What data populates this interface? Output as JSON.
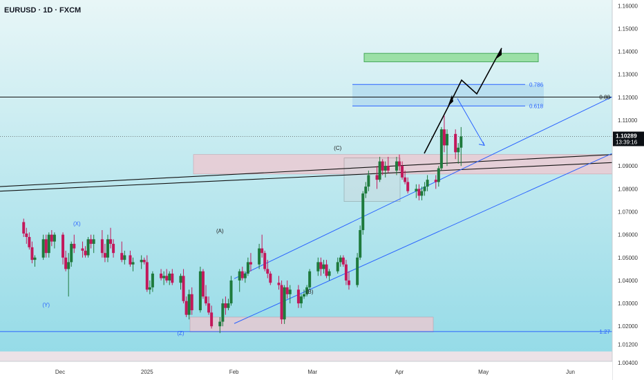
{
  "header": {
    "symbol_title": "EURUSD · 1D · FXCM"
  },
  "colors": {
    "bg_top": "#e8f6f7",
    "bg_bottom": "#8fd9e6",
    "bull": "#1e7a3c",
    "bear": "#c2185b",
    "wave_blue": "#2962ff",
    "price_badge": "#0b0f14"
  },
  "chart_data": {
    "type": "candlestick",
    "symbol": "EURUSD",
    "timeframe": "1D",
    "source": "FXCM",
    "ylim": [
      1.0,
      1.165
    ],
    "y_ticks": [
      "1.16000",
      "1.15000",
      "1.14000",
      "1.13000",
      "1.12000",
      "1.11000",
      "1.09000",
      "1.08000",
      "1.07000",
      "1.06000",
      "1.05000",
      "1.04000",
      "1.03000",
      "1.02000",
      "1.01200",
      "1.00400"
    ],
    "x_ticks": [
      "Dec",
      "2025",
      "Feb",
      "Mar",
      "Apr",
      "May",
      "Jun"
    ],
    "x_tick_dates": [
      "2024-12-01",
      "2025-01-01",
      "2025-02-01",
      "2025-03-01",
      "2025-04-01",
      "2025-05-01",
      "2025-06-01"
    ],
    "last_price": "1.10289",
    "countdown": "13:39:16",
    "fib_levels": [
      {
        "label": "0.88",
        "price": 1.1201
      },
      {
        "label": "0.786",
        "price": 1.1256
      },
      {
        "label": "0.618",
        "price": 1.1162
      },
      {
        "label": "1.27",
        "price": 1.0177
      }
    ],
    "wave_labels": [
      {
        "text": "(X)",
        "date": "2024-12-07",
        "price": 1.064
      },
      {
        "text": "(Y)",
        "date": "2024-11-26",
        "price": 1.0285
      },
      {
        "text": "(Z)",
        "date": "2025-01-13",
        "price": 1.0162
      },
      {
        "text": "(A)",
        "date": "2025-01-27",
        "price": 1.0608
      },
      {
        "text": "(B)",
        "date": "2025-02-28",
        "price": 1.0343
      },
      {
        "text": "(C)",
        "date": "2025-03-10",
        "price": 1.097
      }
    ],
    "candles": [
      [
        "2024-11-18",
        1.0655,
        1.067,
        1.059,
        1.0605
      ],
      [
        "2024-11-19",
        1.0605,
        1.063,
        1.056,
        1.059
      ],
      [
        "2024-11-20",
        1.059,
        1.061,
        1.0535,
        1.0545
      ],
      [
        "2024-11-21",
        1.0545,
        1.057,
        1.0475,
        1.049
      ],
      [
        "2024-11-22",
        1.049,
        1.051,
        1.046,
        1.05
      ],
      [
        "2024-11-25",
        1.05,
        1.06,
        1.049,
        1.058
      ],
      [
        "2024-11-26",
        1.058,
        1.06,
        1.05,
        1.052
      ],
      [
        "2024-11-27",
        1.052,
        1.061,
        1.05,
        1.06
      ],
      [
        "2024-11-28",
        1.06,
        1.062,
        1.055,
        1.057
      ],
      [
        "2024-11-29",
        1.057,
        1.061,
        1.054,
        1.06
      ],
      [
        "2024-12-02",
        1.06,
        1.061,
        1.047,
        1.05
      ],
      [
        "2024-12-03",
        1.05,
        1.053,
        1.044,
        1.045
      ],
      [
        "2024-12-04",
        1.045,
        1.052,
        1.033,
        1.048
      ],
      [
        "2024-12-05",
        1.048,
        1.057,
        1.046,
        1.056
      ],
      [
        "2024-12-06",
        1.056,
        1.06,
        1.052,
        1.054
      ],
      [
        "2024-12-09",
        1.054,
        1.057,
        1.05,
        1.053
      ],
      [
        "2024-12-10",
        1.053,
        1.055,
        1.05,
        1.051
      ],
      [
        "2024-12-11",
        1.051,
        1.059,
        1.05,
        1.058
      ],
      [
        "2024-12-12",
        1.058,
        1.06,
        1.054,
        1.056
      ],
      [
        "2024-12-13",
        1.056,
        1.06,
        1.052,
        1.058
      ],
      [
        "2024-12-16",
        1.058,
        1.062,
        1.05,
        1.052
      ],
      [
        "2024-12-17",
        1.052,
        1.056,
        1.048,
        1.05
      ],
      [
        "2024-12-18",
        1.05,
        1.06,
        1.048,
        1.058
      ],
      [
        "2024-12-19",
        1.058,
        1.063,
        1.054,
        1.056
      ],
      [
        "2024-12-20",
        1.056,
        1.058,
        1.05,
        1.052
      ],
      [
        "2024-12-23",
        1.052,
        1.057,
        1.048,
        1.049
      ],
      [
        "2024-12-24",
        1.049,
        1.053,
        1.047,
        1.051
      ],
      [
        "2024-12-26",
        1.051,
        1.053,
        1.046,
        1.047
      ],
      [
        "2024-12-27",
        1.047,
        1.05,
        1.044,
        1.048
      ],
      [
        "2024-12-30",
        1.048,
        1.051,
        1.045,
        1.049
      ],
      [
        "2024-12-31",
        1.049,
        1.05,
        1.047,
        1.048
      ],
      [
        "2025-01-01",
        1.048,
        1.051,
        1.035,
        1.036
      ],
      [
        "2025-01-02",
        1.036,
        1.04,
        1.034,
        1.037
      ],
      [
        "2025-01-03",
        1.037,
        1.044,
        1.035,
        1.043
      ],
      [
        "2025-01-06",
        1.043,
        1.045,
        1.04,
        1.041
      ],
      [
        "2025-01-07",
        1.041,
        1.044,
        1.038,
        1.042
      ],
      [
        "2025-01-08",
        1.042,
        1.045,
        1.039,
        1.04
      ],
      [
        "2025-01-09",
        1.04,
        1.044,
        1.038,
        1.043
      ],
      [
        "2025-01-10",
        1.043,
        1.045,
        1.038,
        1.039
      ],
      [
        "2025-01-13",
        1.039,
        1.043,
        1.036,
        1.042
      ],
      [
        "2025-01-14",
        1.042,
        1.045,
        1.03,
        1.031
      ],
      [
        "2025-01-15",
        1.031,
        1.033,
        1.024,
        1.025
      ],
      [
        "2025-01-16",
        1.025,
        1.036,
        1.023,
        1.034
      ],
      [
        "2025-01-17",
        1.034,
        1.037,
        1.025,
        1.027
      ],
      [
        "2025-01-20",
        1.027,
        1.046,
        1.026,
        1.044
      ],
      [
        "2025-01-21",
        1.044,
        1.045,
        1.032,
        1.033
      ],
      [
        "2025-01-22",
        1.033,
        1.038,
        1.029,
        1.03
      ],
      [
        "2025-01-23",
        1.03,
        1.033,
        1.025,
        1.026
      ],
      [
        "2025-01-24",
        1.026,
        1.029,
        1.019,
        1.02
      ],
      [
        "2025-01-27",
        1.02,
        1.024,
        1.017,
        1.022
      ],
      [
        "2025-01-28",
        1.022,
        1.032,
        1.02,
        1.03
      ],
      [
        "2025-01-29",
        1.03,
        1.033,
        1.025,
        1.028
      ],
      [
        "2025-01-30",
        1.028,
        1.032,
        1.027,
        1.03
      ],
      [
        "2025-01-31",
        1.03,
        1.042,
        1.029,
        1.04
      ],
      [
        "2025-02-03",
        1.04,
        1.045,
        1.035,
        1.044
      ],
      [
        "2025-02-04",
        1.044,
        1.046,
        1.04,
        1.041
      ],
      [
        "2025-02-05",
        1.041,
        1.044,
        1.039,
        1.043
      ],
      [
        "2025-02-06",
        1.043,
        1.05,
        1.042,
        1.048
      ],
      [
        "2025-02-07",
        1.048,
        1.052,
        1.044,
        1.047
      ],
      [
        "2025-02-10",
        1.047,
        1.056,
        1.045,
        1.054
      ],
      [
        "2025-02-11",
        1.054,
        1.06,
        1.05,
        1.052
      ],
      [
        "2025-02-12",
        1.052,
        1.053,
        1.044,
        1.045
      ],
      [
        "2025-02-13",
        1.045,
        1.049,
        1.041,
        1.043
      ],
      [
        "2025-02-14",
        1.043,
        1.044,
        1.038,
        1.039
      ],
      [
        "2025-02-17",
        1.039,
        1.042,
        1.036,
        1.038
      ],
      [
        "2025-02-18",
        1.038,
        1.04,
        1.021,
        1.023
      ],
      [
        "2025-02-19",
        1.023,
        1.038,
        1.021,
        1.037
      ],
      [
        "2025-02-20",
        1.037,
        1.04,
        1.032,
        1.034
      ],
      [
        "2025-02-21",
        1.034,
        1.038,
        1.03,
        1.036
      ],
      [
        "2025-02-24",
        1.036,
        1.038,
        1.028,
        1.03
      ],
      [
        "2025-02-25",
        1.03,
        1.034,
        1.028,
        1.033
      ],
      [
        "2025-02-26",
        1.033,
        1.036,
        1.032,
        1.034
      ],
      [
        "2025-02-27",
        1.034,
        1.038,
        1.033,
        1.037
      ],
      [
        "2025-02-28",
        1.037,
        1.045,
        1.036,
        1.044
      ],
      [
        "2025-03-03",
        1.044,
        1.05,
        1.042,
        1.048
      ],
      [
        "2025-03-04",
        1.048,
        1.05,
        1.042,
        1.045
      ],
      [
        "2025-03-05",
        1.045,
        1.049,
        1.043,
        1.047
      ],
      [
        "2025-03-06",
        1.047,
        1.049,
        1.041,
        1.042
      ],
      [
        "2025-03-07",
        1.042,
        1.045,
        1.04,
        1.044
      ],
      [
        "2025-03-10",
        1.044,
        1.05,
        1.043,
        1.048
      ],
      [
        "2025-03-11",
        1.048,
        1.051,
        1.046,
        1.05
      ],
      [
        "2025-03-12",
        1.05,
        1.051,
        1.046,
        1.047
      ],
      [
        "2025-03-13",
        1.047,
        1.049,
        1.038,
        1.04
      ],
      [
        "2025-03-14",
        1.04,
        1.044,
        1.036,
        1.038
      ],
      [
        "2025-03-17",
        1.038,
        1.052,
        1.037,
        1.05
      ],
      [
        "2025-03-18",
        1.05,
        1.064,
        1.049,
        1.062
      ],
      [
        "2025-03-19",
        1.062,
        1.079,
        1.06,
        1.078
      ],
      [
        "2025-03-20",
        1.078,
        1.083,
        1.076,
        1.081
      ],
      [
        "2025-03-21",
        1.081,
        1.088,
        1.079,
        1.086
      ],
      [
        "2025-03-24",
        1.086,
        1.09,
        1.08,
        1.084
      ],
      [
        "2025-03-25",
        1.084,
        1.094,
        1.083,
        1.092
      ],
      [
        "2025-03-26",
        1.092,
        1.093,
        1.086,
        1.088
      ],
      [
        "2025-03-27",
        1.088,
        1.092,
        1.085,
        1.09
      ],
      [
        "2025-03-28",
        1.09,
        1.094,
        1.087,
        1.088
      ],
      [
        "2025-03-31",
        1.088,
        1.094,
        1.086,
        1.092
      ],
      [
        "2025-04-01",
        1.092,
        1.095,
        1.088,
        1.09
      ],
      [
        "2025-04-02",
        1.09,
        1.092,
        1.084,
        1.085
      ],
      [
        "2025-04-03",
        1.085,
        1.088,
        1.082,
        1.083
      ],
      [
        "2025-04-04",
        1.083,
        1.085,
        1.078,
        1.079
      ],
      [
        "2025-04-07",
        1.079,
        1.082,
        1.076,
        1.08
      ],
      [
        "2025-04-08",
        1.08,
        1.082,
        1.075,
        1.077
      ],
      [
        "2025-04-09",
        1.077,
        1.081,
        1.075,
        1.079
      ],
      [
        "2025-04-10",
        1.079,
        1.083,
        1.077,
        1.081
      ],
      [
        "2025-04-11",
        1.081,
        1.086,
        1.079,
        1.084
      ],
      [
        "2025-04-14",
        1.084,
        1.086,
        1.08,
        1.083
      ],
      [
        "2025-04-15",
        1.083,
        1.09,
        1.081,
        1.089
      ],
      [
        "2025-04-16",
        1.089,
        1.107,
        1.088,
        1.106
      ],
      [
        "2025-04-17",
        1.106,
        1.112,
        1.096,
        1.099
      ],
      [
        "2025-04-18",
        1.099,
        1.106,
        1.09,
        1.104
      ],
      [
        "2025-04-21",
        1.104,
        1.106,
        1.093,
        1.096
      ],
      [
        "2025-04-22",
        1.096,
        1.1,
        1.091,
        1.098
      ],
      [
        "2025-04-23",
        1.098,
        1.107,
        1.09,
        1.1029
      ]
    ]
  }
}
